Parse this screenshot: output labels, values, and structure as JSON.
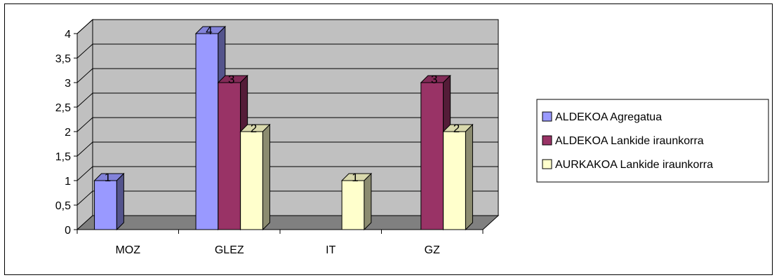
{
  "chart_data": {
    "type": "bar",
    "categories": [
      "MOZ",
      "GLEZ",
      "IT",
      "GZ"
    ],
    "series": [
      {
        "name": "ALDEKOA Agregatua",
        "values": [
          1,
          4,
          null,
          null
        ],
        "color": "#9999FF"
      },
      {
        "name": "ALDEKOA Lankide iraunkorra",
        "values": [
          null,
          3,
          null,
          3
        ],
        "color": "#993366"
      },
      {
        "name": "AURKAKOA Lankide iraunkorra",
        "values": [
          null,
          2,
          1,
          2
        ],
        "color": "#FFFFCC"
      }
    ],
    "yticks": [
      "0",
      "0,5",
      "1",
      "1,5",
      "2",
      "2,5",
      "3",
      "3,5",
      "4"
    ],
    "ylim": [
      0,
      4
    ],
    "title": "",
    "xlabel": "",
    "ylabel": "",
    "grid": true,
    "legend": "right",
    "data_labels": true,
    "plot_background": "#C0C0C0",
    "floor_color": "#808080"
  }
}
